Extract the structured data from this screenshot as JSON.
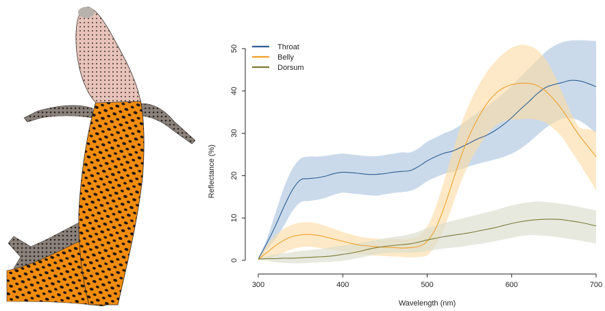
{
  "chart_data": {
    "type": "line",
    "xlabel": "Wavelength (nm)",
    "ylabel": "Reflectance (%)",
    "xlim": [
      300,
      700
    ],
    "ylim": [
      0,
      52
    ],
    "xticks": [
      300,
      400,
      500,
      600,
      700
    ],
    "yticks": [
      0,
      10,
      20,
      30,
      40,
      50
    ],
    "grid": false,
    "legend_position": "top-left",
    "x": [
      300,
      310,
      320,
      330,
      340,
      350,
      360,
      370,
      380,
      390,
      400,
      410,
      420,
      430,
      440,
      450,
      460,
      470,
      480,
      490,
      500,
      510,
      520,
      530,
      540,
      550,
      560,
      570,
      580,
      590,
      600,
      610,
      620,
      630,
      640,
      650,
      660,
      670,
      680,
      690,
      700
    ],
    "series": [
      {
        "name": "Throat",
        "color": "#2c5e93",
        "band_color": "#a9c3df",
        "values": [
          0.3,
          4,
          8,
          12.5,
          16.5,
          19.0,
          19.3,
          19.5,
          19.9,
          20.5,
          20.8,
          20.7,
          20.5,
          20.3,
          20.3,
          20.5,
          20.8,
          21.0,
          21.2,
          22.2,
          23.5,
          24.5,
          25.3,
          25.8,
          26.7,
          27.7,
          28.7,
          29.5,
          30.6,
          32.0,
          33.7,
          35.6,
          37.4,
          39.3,
          40.8,
          41.5,
          42.0,
          42.5,
          42.4,
          41.8,
          41.0
        ],
        "upper": [
          0.5,
          5,
          11,
          17,
          21.5,
          24.0,
          24.5,
          24.5,
          24.7,
          25.0,
          25.2,
          25.0,
          24.8,
          24.6,
          24.6,
          24.9,
          25.2,
          25.5,
          25.5,
          26.5,
          28.0,
          29.0,
          30.0,
          30.8,
          32.0,
          33.5,
          35.0,
          36.3,
          37.8,
          39.4,
          41.2,
          43.2,
          45.2,
          47.2,
          49.2,
          50.6,
          51.5,
          51.9,
          52.0,
          51.9,
          51.8
        ],
        "lower": [
          0.1,
          2.5,
          5,
          8,
          11.5,
          13.7,
          14.0,
          14.3,
          14.8,
          15.5,
          16.0,
          15.8,
          15.6,
          15.4,
          15.3,
          15.6,
          15.9,
          16.1,
          16.4,
          17.3,
          18.7,
          19.6,
          20.4,
          20.9,
          21.5,
          22.2,
          22.8,
          23.3,
          23.8,
          24.4,
          25.2,
          26.3,
          27.8,
          29.5,
          31.2,
          32.5,
          33.5,
          33.6,
          33.0,
          31.7,
          30.0
        ]
      },
      {
        "name": "Belly",
        "color": "#f0a02a",
        "band_color": "#fbdca4",
        "values": [
          0.3,
          1.8,
          3.4,
          4.7,
          5.6,
          6.0,
          6.1,
          5.9,
          5.5,
          5.0,
          4.5,
          4.0,
          3.6,
          3.4,
          3.2,
          3.1,
          3.0,
          2.9,
          3.0,
          3.3,
          4.5,
          7.5,
          12.5,
          18.5,
          24.5,
          29.5,
          33.5,
          36.8,
          39.2,
          40.7,
          41.5,
          41.8,
          41.8,
          41.3,
          40.0,
          38.0,
          35.5,
          32.5,
          29.5,
          27.0,
          24.5
        ],
        "upper": [
          0.5,
          3.5,
          5.8,
          7.4,
          8.4,
          8.9,
          9.0,
          8.7,
          8.1,
          7.4,
          6.7,
          6.1,
          5.6,
          5.3,
          5.1,
          5.0,
          5.0,
          5.0,
          5.2,
          5.8,
          8.0,
          12.5,
          18.8,
          25.5,
          32.0,
          37.0,
          41.0,
          44.3,
          46.8,
          48.8,
          50.2,
          50.9,
          50.7,
          49.7,
          47.5,
          44.0,
          39.5,
          35.0,
          31.5,
          31.0,
          30.5
        ],
        "lower": [
          0.1,
          0.3,
          0.9,
          1.8,
          2.6,
          3.1,
          3.2,
          3.0,
          2.7,
          2.4,
          2.1,
          1.8,
          1.5,
          1.3,
          1.1,
          1.0,
          0.9,
          0.8,
          0.7,
          0.8,
          1.2,
          3.5,
          7.5,
          13.0,
          18.5,
          23.0,
          26.5,
          29.5,
          31.7,
          32.8,
          33.2,
          33.3,
          33.4,
          33.2,
          32.5,
          31.0,
          29.0,
          26.0,
          23.0,
          19.8,
          16.5
        ]
      },
      {
        "name": "Dorsum",
        "color": "#7a7a35",
        "band_color": "#d9dccb",
        "values": [
          0.3,
          0.4,
          0.4,
          0.5,
          0.5,
          0.6,
          0.7,
          0.8,
          0.9,
          1.1,
          1.4,
          1.7,
          2.1,
          2.6,
          3.0,
          3.3,
          3.5,
          3.7,
          3.9,
          4.3,
          4.8,
          5.2,
          5.6,
          5.9,
          6.2,
          6.5,
          6.9,
          7.3,
          7.7,
          8.2,
          8.7,
          9.1,
          9.4,
          9.6,
          9.7,
          9.7,
          9.6,
          9.3,
          9.0,
          8.6,
          8.1
        ],
        "upper": [
          0.5,
          1.0,
          1.4,
          1.7,
          1.9,
          2.2,
          2.4,
          2.6,
          2.9,
          3.2,
          3.5,
          3.8,
          4.1,
          4.4,
          4.8,
          5.2,
          5.5,
          5.8,
          6.2,
          6.8,
          7.6,
          8.2,
          8.8,
          9.3,
          9.8,
          10.3,
          10.8,
          11.3,
          11.8,
          12.4,
          13.0,
          13.4,
          13.7,
          13.9,
          13.8,
          13.6,
          13.3,
          13.0,
          12.6,
          12.2,
          11.8
        ],
        "lower": [
          0.1,
          -0.1,
          -0.4,
          -0.6,
          -0.7,
          -0.7,
          -0.6,
          -0.5,
          -0.4,
          -0.3,
          -0.1,
          0.2,
          0.6,
          1.0,
          1.4,
          1.7,
          1.8,
          1.8,
          1.8,
          1.9,
          2.2,
          2.5,
          2.8,
          3.0,
          3.2,
          3.5,
          3.8,
          4.1,
          4.5,
          4.9,
          5.3,
          5.7,
          5.9,
          5.9,
          5.8,
          5.6,
          5.3,
          5.0,
          4.7,
          4.3,
          4.0
        ]
      }
    ]
  },
  "photo": {
    "subject": "lizard-ventral-view",
    "colors": {
      "throat": "#e7c3ba",
      "belly": "#f28c0f",
      "spots": "#1f1712",
      "limbs": "#6f6560"
    }
  }
}
